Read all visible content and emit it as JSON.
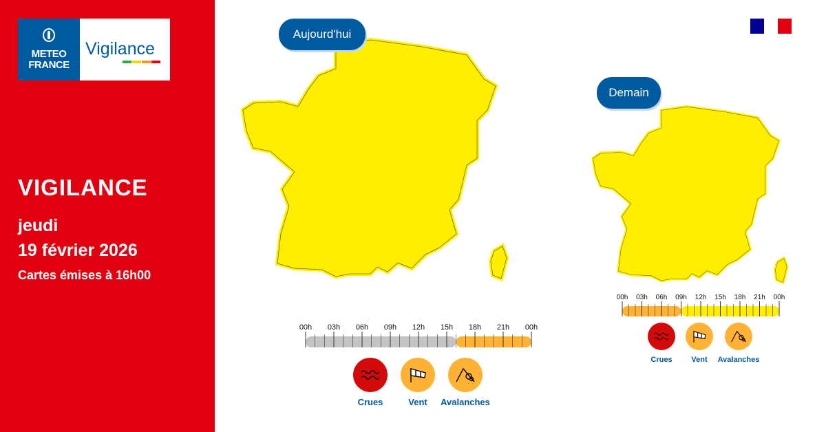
{
  "logo": {
    "meteo_line1": "METEO",
    "meteo_line2": "FRANCE",
    "vigilance": "Vigilance",
    "bar_colors": [
      "#2faa3c",
      "#ffd500",
      "#f2972a",
      "#e1000f"
    ]
  },
  "sidebar": {
    "title": "VIGILANCE",
    "day_line1": "jeudi",
    "day_line2": "19 février 2026",
    "issued": "Cartes émises à 16h00",
    "background": "#e1000f"
  },
  "flag": {
    "colors": [
      "#000091",
      "#ffffff",
      "#e1000f"
    ]
  },
  "colors": {
    "green": "#2faa3c",
    "yellow": "#ffee00",
    "orange": "#ffb233",
    "red": "#d40a0a",
    "past": "#c3c3c3",
    "brand_blue": "#005aa0"
  },
  "today": {
    "label": "Aujourd'hui",
    "timeline": {
      "ticks": [
        "00h",
        "03h",
        "06h",
        "09h",
        "12h",
        "15h",
        "18h",
        "21h",
        "00h"
      ],
      "segments": [
        {
          "from": 0,
          "to": 16,
          "level": "past"
        },
        {
          "from": 16,
          "to": 24,
          "level": "orange"
        }
      ]
    },
    "legend": [
      {
        "label": "Crues",
        "level": "red",
        "icon": "waves-icon"
      },
      {
        "label": "Vent",
        "level": "orange",
        "icon": "windsock-icon"
      },
      {
        "label": "Avalanches",
        "level": "orange",
        "icon": "avalanche-icon"
      }
    ]
  },
  "tomorrow": {
    "label": "Demain",
    "timeline": {
      "ticks": [
        "00h",
        "03h",
        "06h",
        "09h",
        "12h",
        "15h",
        "18h",
        "21h",
        "00h"
      ],
      "segments": [
        {
          "from": 0,
          "to": 9,
          "level": "orange"
        },
        {
          "from": 9,
          "to": 24,
          "level": "yellow"
        }
      ]
    },
    "legend": [
      {
        "label": "Crues",
        "level": "red",
        "icon": "waves-icon"
      },
      {
        "label": "Vent",
        "level": "orange",
        "icon": "windsock-icon"
      },
      {
        "label": "Avalanches",
        "level": "orange",
        "icon": "avalanche-icon"
      }
    ]
  }
}
